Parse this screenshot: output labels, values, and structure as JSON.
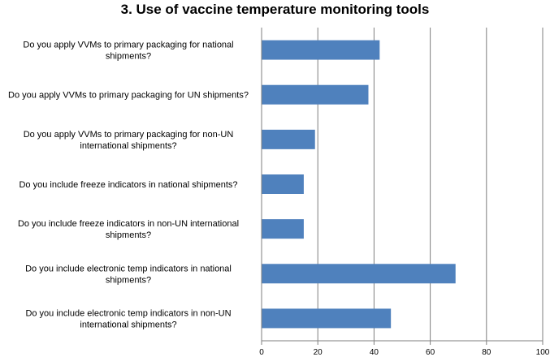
{
  "chart_data": {
    "type": "bar",
    "orientation": "horizontal",
    "title": "3. Use of vaccine temperature monitoring tools",
    "xlabel": "",
    "ylabel": "",
    "xlim": [
      0,
      100
    ],
    "x_ticks": [
      0,
      20,
      40,
      60,
      80,
      100
    ],
    "grid": "vertical",
    "legend": "none",
    "bar_color": "#4F81BD",
    "categories": [
      [
        "Do you apply VVMs to primary packaging for national",
        "shipments?"
      ],
      [
        "Do you apply VVMs to primary packaging for UN shipments?"
      ],
      [
        "Do you apply VVMs to primary packaging for non-UN",
        "international shipments?"
      ],
      [
        "Do you include freeze indicators in national shipments?"
      ],
      [
        "Do you include freeze indicators in non-UN international",
        "shipments?"
      ],
      [
        "Do you include electronic temp indicators in national",
        "shipments?"
      ],
      [
        "Do you include electronic temp indicators in non-UN",
        "international shipments?"
      ]
    ],
    "values": [
      42,
      38,
      19,
      15,
      15,
      69,
      46
    ]
  }
}
